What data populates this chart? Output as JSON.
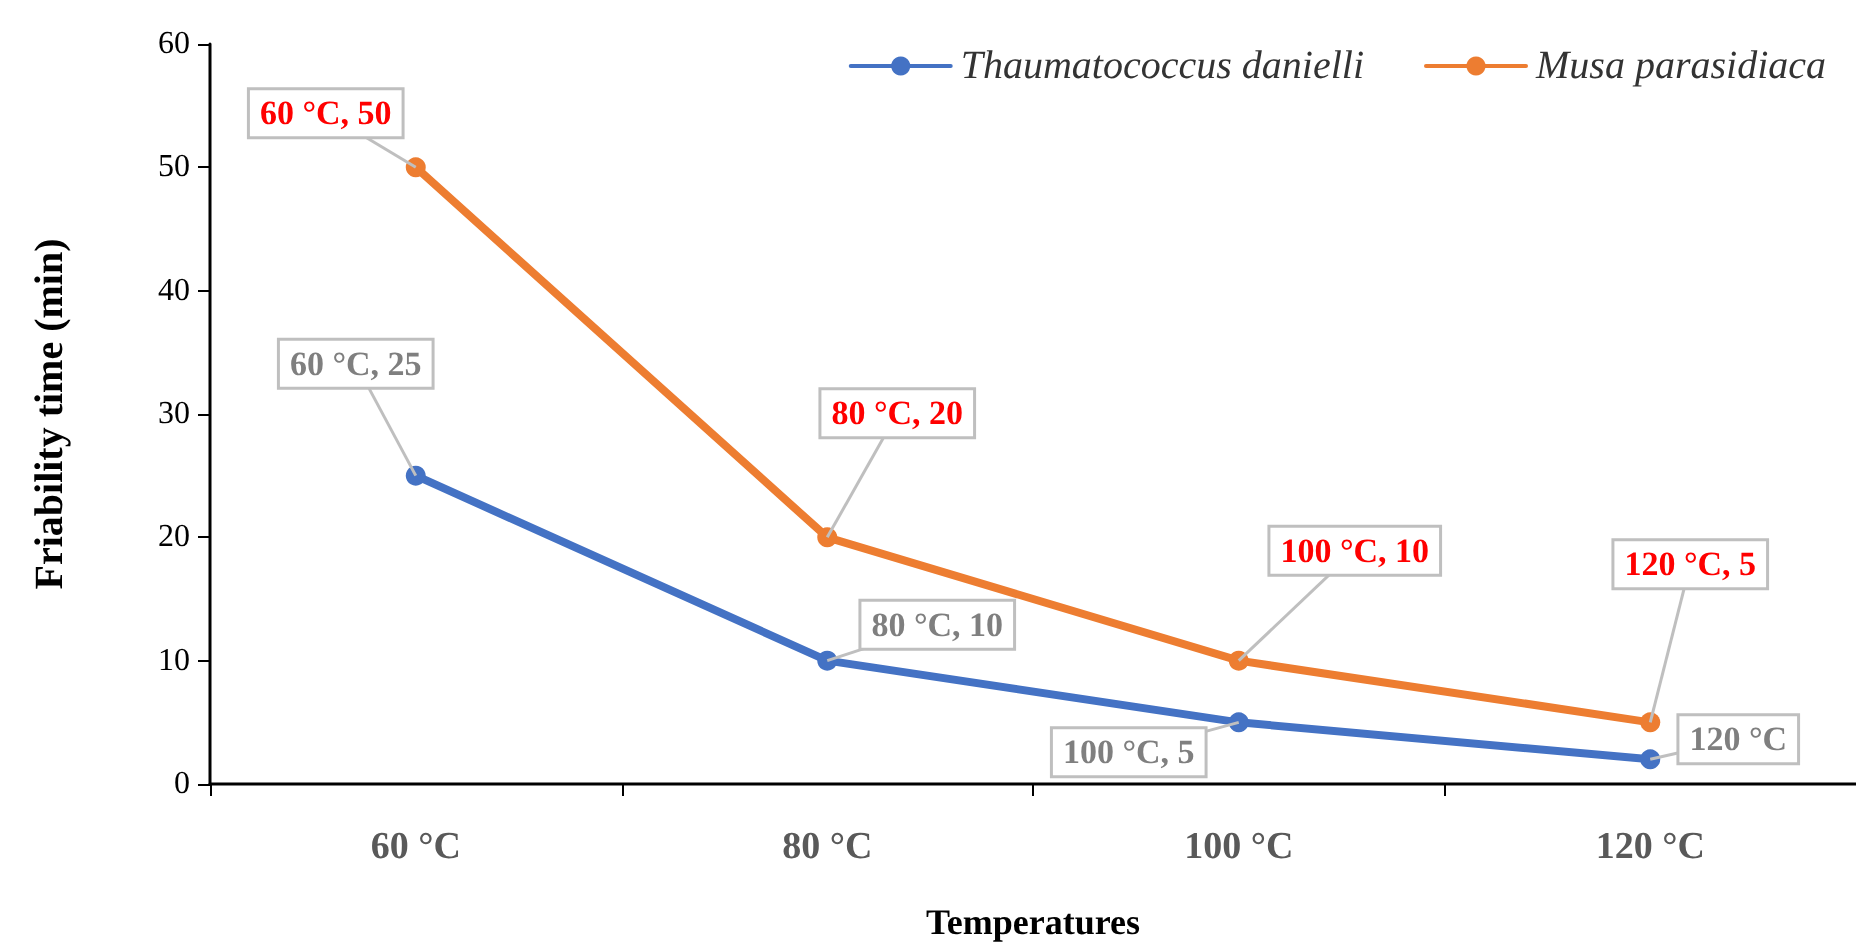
{
  "chart_data": {
    "type": "line",
    "xlabel": "Temperatures",
    "ylabel": "Friability time (min)",
    "categories": [
      "60 °C",
      "80 °C",
      "100 °C",
      "120 °C"
    ],
    "series": [
      {
        "name": "Thaumatococcus danielli",
        "color": "#4472c4",
        "values": [
          25,
          10,
          5,
          2
        ]
      },
      {
        "name": "Musa parasidiaca",
        "color": "#ed7d31",
        "values": [
          50,
          20,
          10,
          5
        ]
      }
    ],
    "ylim": [
      0,
      60
    ],
    "yticks": [
      0,
      10,
      20,
      30,
      40,
      50,
      60
    ],
    "grid": false,
    "legend": "top right",
    "marker": "circle",
    "line_style": "solid",
    "annotations": [
      {
        "text": "60 °C, 50",
        "x": "60 °C",
        "y": 50
      },
      {
        "text": "60 °C, 25",
        "x": "60 °C",
        "y": 25
      },
      {
        "text": "80 °C, 20",
        "x": "80 °C",
        "y": 20
      },
      {
        "text": "80 °C, 10",
        "x": "80 °C",
        "y": 10
      },
      {
        "text": "100 °C, 10",
        "x": "100 °C",
        "y": 10
      },
      {
        "text": "100 °C, 5",
        "x": "100 °C",
        "y": 5
      },
      {
        "text": "120 °C, 5",
        "x": "120 °C",
        "y": 5
      },
      {
        "text": "120 °C",
        "x": "120 °C",
        "y": 2
      }
    ]
  }
}
